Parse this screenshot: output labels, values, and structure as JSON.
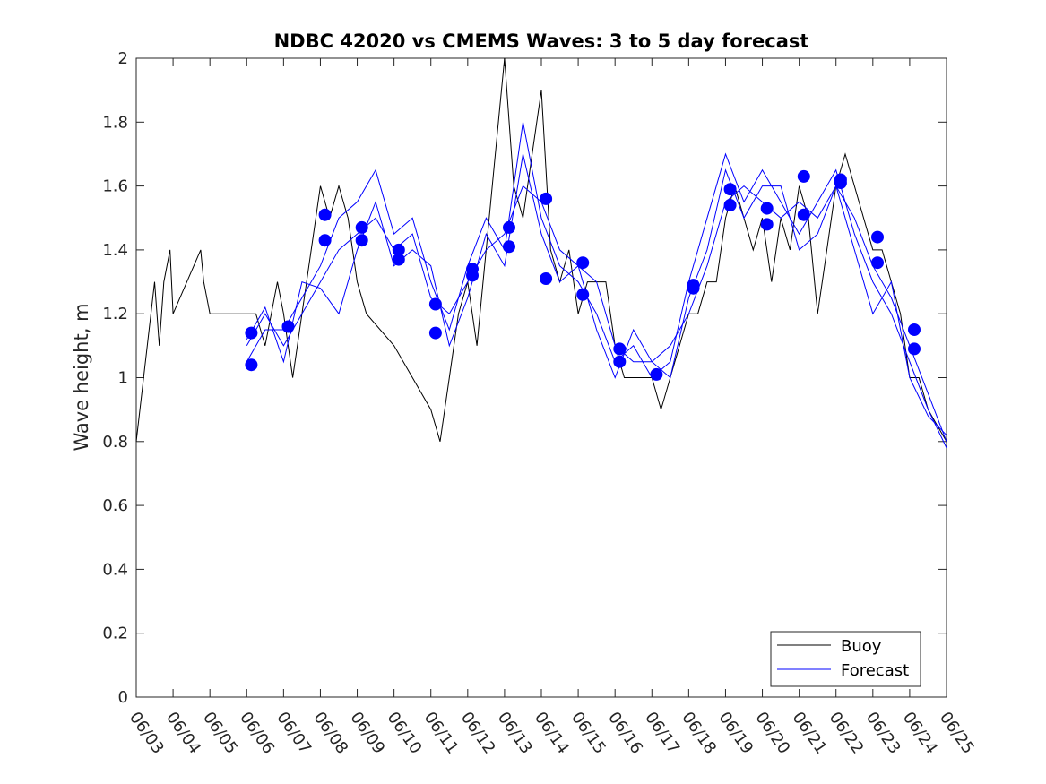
{
  "chart_data": {
    "type": "line",
    "title": "NDBC 42020 vs CMEMS Waves: 3 to 5 day forecast",
    "xlabel": "",
    "ylabel": "Wave height, m",
    "xlim": [
      "06/03",
      "06/25"
    ],
    "ylim": [
      0,
      2
    ],
    "x_ticks": [
      "06/03",
      "06/04",
      "06/05",
      "06/06",
      "06/07",
      "06/08",
      "06/09",
      "06/10",
      "06/11",
      "06/12",
      "06/13",
      "06/14",
      "06/15",
      "06/16",
      "06/17",
      "06/18",
      "06/19",
      "06/20",
      "06/21",
      "06/22",
      "06/23",
      "06/24",
      "06/25"
    ],
    "y_ticks": [
      0,
      0.2,
      0.4,
      0.6,
      0.8,
      1,
      1.2,
      1.4,
      1.6,
      1.8,
      2
    ],
    "grid": false,
    "legend": {
      "position": "bottom-right",
      "entries": [
        "Buoy",
        "Forecast"
      ]
    },
    "colors": {
      "buoy": "#000000",
      "forecast": "#0000ff",
      "markers": "#0000ff",
      "axes": "#262626"
    },
    "series": [
      {
        "name": "Buoy",
        "x": [
          "06/03 00:00",
          "06/03 12:00",
          "06/03 15:00",
          "06/03 18:00",
          "06/03 22:00",
          "06/04 00:00",
          "06/04 18:00",
          "06/04 20:00",
          "06/05 00:00",
          "06/05 12:00",
          "06/06 00:00",
          "06/06 06:00",
          "06/06 12:00",
          "06/06 16:00",
          "06/06 20:00",
          "06/07 00:00",
          "06/07 06:00",
          "06/07 12:00",
          "06/07 18:00",
          "06/08 00:00",
          "06/08 06:00",
          "06/08 12:00",
          "06/08 18:00",
          "06/09 00:00",
          "06/09 06:00",
          "06/10 00:00",
          "06/11 00:00",
          "06/11 06:00",
          "06/11 12:00",
          "06/11 18:00",
          "06/12 00:00",
          "06/12 06:00",
          "06/12 12:00",
          "06/12 18:00",
          "06/13 00:00",
          "06/13 06:00",
          "06/13 12:00",
          "06/13 18:00",
          "06/14 00:00",
          "06/14 06:00",
          "06/14 12:00",
          "06/14 18:00",
          "06/15 00:00",
          "06/15 06:00",
          "06/15 12:00",
          "06/15 18:00",
          "06/16 00:00",
          "06/16 06:00",
          "06/16 12:00",
          "06/17 00:00",
          "06/17 06:00",
          "06/17 12:00",
          "06/17 18:00",
          "06/18 00:00",
          "06/18 06:00",
          "06/18 12:00",
          "06/18 18:00",
          "06/19 00:00",
          "06/19 06:00",
          "06/19 12:00",
          "06/19 18:00",
          "06/20 00:00",
          "06/20 06:00",
          "06/20 12:00",
          "06/20 18:00",
          "06/21 00:00",
          "06/21 06:00",
          "06/21 12:00",
          "06/21 18:00",
          "06/22 00:00",
          "06/22 06:00",
          "06/22 12:00",
          "06/22 18:00",
          "06/23 00:00",
          "06/23 06:00",
          "06/23 12:00",
          "06/23 18:00",
          "06/24 00:00",
          "06/24 06:00",
          "06/24 12:00",
          "06/24 18:00",
          "06/25 00:00"
        ],
        "y": [
          0.8,
          1.3,
          1.1,
          1.3,
          1.4,
          1.2,
          1.4,
          1.3,
          1.2,
          1.2,
          1.2,
          1.2,
          1.1,
          1.2,
          1.3,
          1.2,
          1.0,
          1.2,
          1.4,
          1.6,
          1.5,
          1.6,
          1.5,
          1.3,
          1.2,
          1.1,
          0.9,
          0.8,
          1.0,
          1.2,
          1.3,
          1.1,
          1.4,
          1.7,
          2.0,
          1.6,
          1.5,
          1.7,
          1.9,
          1.4,
          1.3,
          1.4,
          1.2,
          1.3,
          1.3,
          1.3,
          1.1,
          1.0,
          1.0,
          1.0,
          0.9,
          1.0,
          1.1,
          1.2,
          1.2,
          1.3,
          1.3,
          1.5,
          1.6,
          1.5,
          1.4,
          1.5,
          1.3,
          1.5,
          1.4,
          1.6,
          1.5,
          1.2,
          1.4,
          1.6,
          1.7,
          1.6,
          1.5,
          1.4,
          1.4,
          1.3,
          1.2,
          1.0,
          1.0,
          0.9,
          0.85,
          0.8
        ]
      },
      {
        "name": "Forecast",
        "x": [
          "06/06 00:00",
          "06/06 12:00",
          "06/07 00:00",
          "06/07 12:00",
          "06/08 00:00",
          "06/08 12:00",
          "06/09 00:00",
          "06/09 12:00",
          "06/10 00:00",
          "06/10 12:00",
          "06/11 00:00",
          "06/11 12:00",
          "06/12 00:00",
          "06/12 12:00",
          "06/13 00:00",
          "06/13 12:00",
          "06/14 00:00",
          "06/14 12:00",
          "06/15 00:00",
          "06/15 12:00",
          "06/16 00:00",
          "06/16 12:00",
          "06/17 00:00",
          "06/17 12:00",
          "06/18 00:00",
          "06/18 12:00",
          "06/19 00:00",
          "06/19 12:00",
          "06/20 00:00",
          "06/20 12:00",
          "06/21 00:00",
          "06/21 12:00",
          "06/22 00:00",
          "06/22 12:00",
          "06/23 00:00",
          "06/23 12:00",
          "06/24 00:00",
          "06/24 12:00",
          "06/25 00:00"
        ],
        "y": [
          1.1,
          1.2,
          1.1,
          1.2,
          1.3,
          1.4,
          1.45,
          1.5,
          1.4,
          1.45,
          1.25,
          1.2,
          1.3,
          1.4,
          1.45,
          1.6,
          1.55,
          1.4,
          1.35,
          1.3,
          1.1,
          1.05,
          1.05,
          1.1,
          1.2,
          1.35,
          1.55,
          1.6,
          1.55,
          1.5,
          1.55,
          1.5,
          1.6,
          1.5,
          1.35,
          1.25,
          1.1,
          0.95,
          0.8
        ]
      },
      {
        "name": "Forecast",
        "x": [
          "06/06 00:00",
          "06/06 12:00",
          "06/07 00:00",
          "06/07 12:00",
          "06/08 00:00",
          "06/08 12:00",
          "06/09 00:00",
          "06/09 12:00",
          "06/10 00:00",
          "06/10 12:00",
          "06/11 00:00",
          "06/11 12:00",
          "06/12 00:00",
          "06/12 12:00",
          "06/13 00:00",
          "06/13 12:00",
          "06/14 00:00",
          "06/14 12:00",
          "06/15 00:00",
          "06/15 12:00",
          "06/16 00:00",
          "06/16 12:00",
          "06/17 00:00",
          "06/17 12:00",
          "06/18 00:00",
          "06/18 12:00",
          "06/19 00:00",
          "06/19 12:00",
          "06/20 00:00",
          "06/20 12:00",
          "06/21 00:00",
          "06/21 12:00",
          "06/22 00:00",
          "06/22 12:00",
          "06/23 00:00",
          "06/23 12:00",
          "06/24 00:00",
          "06/24 12:00",
          "06/25 00:00"
        ],
        "y": [
          1.05,
          1.15,
          1.15,
          1.25,
          1.35,
          1.5,
          1.55,
          1.65,
          1.45,
          1.5,
          1.3,
          1.15,
          1.35,
          1.5,
          1.4,
          1.8,
          1.5,
          1.35,
          1.3,
          1.2,
          1.05,
          1.1,
          1.0,
          1.05,
          1.3,
          1.5,
          1.7,
          1.55,
          1.65,
          1.55,
          1.45,
          1.55,
          1.65,
          1.45,
          1.3,
          1.2,
          1.05,
          0.9,
          0.78
        ]
      },
      {
        "name": "Forecast",
        "x": [
          "06/06 00:00",
          "06/06 12:00",
          "06/07 00:00",
          "06/07 12:00",
          "06/08 00:00",
          "06/08 12:00",
          "06/09 00:00",
          "06/09 12:00",
          "06/10 00:00",
          "06/10 12:00",
          "06/11 00:00",
          "06/11 12:00",
          "06/12 00:00",
          "06/12 12:00",
          "06/13 00:00",
          "06/13 12:00",
          "06/14 00:00",
          "06/14 12:00",
          "06/15 00:00",
          "06/15 12:00",
          "06/16 00:00",
          "06/16 12:00",
          "06/17 00:00",
          "06/17 12:00",
          "06/18 00:00",
          "06/18 12:00",
          "06/19 00:00",
          "06/19 12:00",
          "06/20 00:00",
          "06/20 12:00",
          "06/21 00:00",
          "06/21 12:00",
          "06/22 00:00",
          "06/22 12:00",
          "06/23 00:00",
          "06/23 12:00",
          "06/24 00:00",
          "06/24 12:00",
          "06/25 00:00"
        ],
        "y": [
          1.12,
          1.22,
          1.05,
          1.3,
          1.28,
          1.2,
          1.4,
          1.55,
          1.35,
          1.4,
          1.35,
          1.1,
          1.25,
          1.45,
          1.35,
          1.7,
          1.45,
          1.3,
          1.35,
          1.15,
          1.0,
          1.15,
          1.05,
          1.0,
          1.25,
          1.4,
          1.65,
          1.5,
          1.6,
          1.6,
          1.4,
          1.45,
          1.6,
          1.4,
          1.2,
          1.3,
          1.0,
          0.88,
          0.82
        ]
      }
    ],
    "markers": {
      "x": [
        "06/06 03:00",
        "06/06 03:00",
        "06/07 03:00",
        "06/08 03:00",
        "06/08 03:00",
        "06/09 03:00",
        "06/09 03:00",
        "06/10 03:00",
        "06/10 03:00",
        "06/11 03:00",
        "06/11 03:00",
        "06/12 03:00",
        "06/12 03:00",
        "06/13 03:00",
        "06/13 03:00",
        "06/14 03:00",
        "06/14 03:00",
        "06/15 03:00",
        "06/15 03:00",
        "06/16 03:00",
        "06/16 03:00",
        "06/17 03:00",
        "06/18 03:00",
        "06/18 03:00",
        "06/19 03:00",
        "06/19 03:00",
        "06/20 03:00",
        "06/20 03:00",
        "06/21 03:00",
        "06/21 03:00",
        "06/22 03:00",
        "06/22 03:00",
        "06/23 03:00",
        "06/23 03:00",
        "06/24 03:00",
        "06/24 03:00"
      ],
      "y": [
        1.14,
        1.04,
        1.16,
        1.51,
        1.43,
        1.47,
        1.43,
        1.4,
        1.37,
        1.23,
        1.14,
        1.34,
        1.32,
        1.47,
        1.41,
        1.56,
        1.31,
        1.36,
        1.26,
        1.09,
        1.05,
        1.01,
        1.29,
        1.28,
        1.59,
        1.54,
        1.53,
        1.48,
        1.63,
        1.51,
        1.62,
        1.61,
        1.44,
        1.36,
        1.15,
        1.09
      ]
    }
  }
}
